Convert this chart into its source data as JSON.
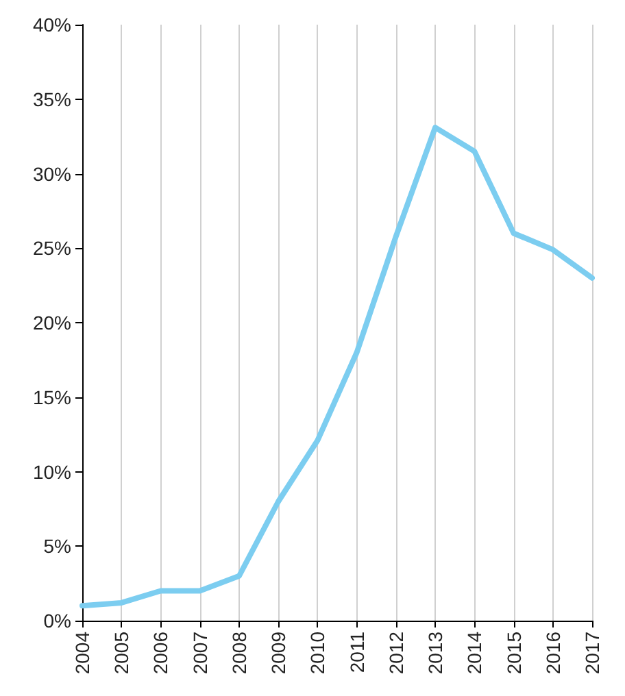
{
  "chart_data": {
    "type": "line",
    "categories": [
      "2004",
      "2005",
      "2006",
      "2007",
      "2008",
      "2009",
      "2010",
      "2011",
      "2012",
      "2013",
      "2014",
      "2015",
      "2016",
      "2017"
    ],
    "series": [
      {
        "color": "#7ccdf0",
        "values": [
          1.0,
          1.2,
          2.0,
          2.0,
          3.0,
          8.0,
          12.1,
          18.0,
          25.8,
          33.1,
          31.5,
          26.0,
          24.9,
          23.0
        ]
      }
    ],
    "ylim": [
      0,
      40
    ],
    "yticks": [
      {
        "value": 0,
        "label": "0%"
      },
      {
        "value": 5,
        "label": "5%"
      },
      {
        "value": 10,
        "label": "10%"
      },
      {
        "value": 15,
        "label": "15%"
      },
      {
        "value": 20,
        "label": "20%"
      },
      {
        "value": 25,
        "label": "25%"
      },
      {
        "value": 30,
        "label": "30%"
      },
      {
        "value": 35,
        "label": "35%"
      },
      {
        "value": 40,
        "label": "40%"
      }
    ],
    "grid": "x",
    "marker": "none",
    "line_style": "solid"
  }
}
